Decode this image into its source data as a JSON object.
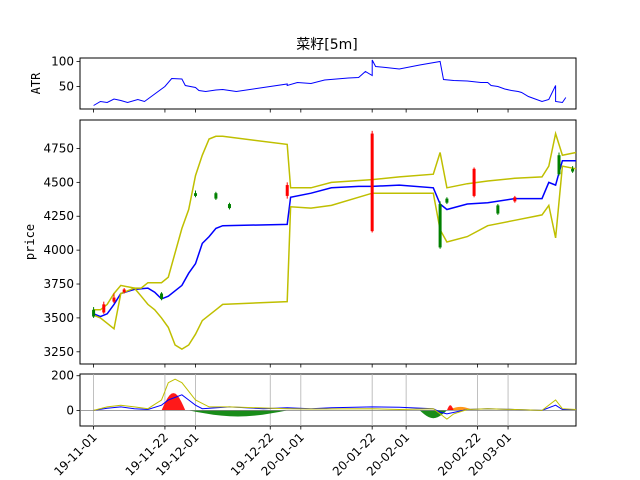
{
  "title": "菜籽[5m]",
  "chart_data": [
    {
      "panel": "atr",
      "type": "line",
      "ylabel": "ATR",
      "ylim": [
        5,
        107
      ],
      "yticks": [
        50,
        100
      ],
      "series": [
        {
          "color": "#0000ff",
          "points": [
            [
              0,
              12
            ],
            [
              2,
              20
            ],
            [
              4,
              18
            ],
            [
              6,
              25
            ],
            [
              8,
              22
            ],
            [
              10,
              18
            ],
            [
              13,
              24
            ],
            [
              15,
              20
            ],
            [
              18,
              35
            ],
            [
              21,
              50
            ],
            [
              23,
              66
            ],
            [
              26,
              65
            ],
            [
              27,
              52
            ],
            [
              30,
              48
            ],
            [
              31,
              42
            ],
            [
              33,
              40
            ],
            [
              36,
              43
            ],
            [
              38,
              44
            ],
            [
              40,
              42
            ],
            [
              42,
              40
            ],
            [
              57,
              55
            ],
            [
              57,
              52
            ],
            [
              60,
              58
            ],
            [
              64,
              56
            ],
            [
              68,
              63
            ],
            [
              75,
              67
            ],
            [
              78,
              68
            ],
            [
              80,
              80
            ],
            [
              82,
              72
            ],
            [
              82,
              103
            ],
            [
              83,
              90
            ],
            [
              86,
              88
            ],
            [
              90,
              85
            ],
            [
              96,
              93
            ],
            [
              102,
              100
            ],
            [
              103,
              64
            ],
            [
              106,
              62
            ],
            [
              110,
              61
            ],
            [
              114,
              58
            ],
            [
              116,
              58
            ],
            [
              117,
              52
            ],
            [
              119,
              50
            ],
            [
              121,
              45
            ],
            [
              123,
              42
            ],
            [
              125,
              40
            ],
            [
              126,
              38
            ],
            [
              128,
              30
            ],
            [
              130,
              25
            ],
            [
              132,
              20
            ],
            [
              134,
              24
            ],
            [
              136,
              52
            ],
            [
              136,
              20
            ],
            [
              138,
              18
            ],
            [
              139,
              28
            ]
          ]
        }
      ]
    },
    {
      "panel": "price",
      "type": "line",
      "ylabel": "price",
      "ylim": [
        3160,
        4960
      ],
      "yticks": [
        3250,
        3500,
        3750,
        4000,
        4250,
        4500,
        4750
      ],
      "series": [
        {
          "color": "#0000ff",
          "points": [
            [
              0,
              3530
            ],
            [
              2,
              3510
            ],
            [
              4,
              3530
            ],
            [
              6,
              3600
            ],
            [
              8,
              3680
            ],
            [
              12,
              3710
            ],
            [
              16,
              3720
            ],
            [
              18,
              3690
            ],
            [
              20,
              3640
            ],
            [
              22,
              3660
            ],
            [
              24,
              3700
            ],
            [
              26,
              3740
            ],
            [
              28,
              3830
            ],
            [
              30,
              3900
            ],
            [
              32,
              4050
            ],
            [
              34,
              4100
            ],
            [
              36,
              4160
            ],
            [
              38,
              4180
            ],
            [
              57,
              4190
            ],
            [
              58,
              4390
            ],
            [
              64,
              4420
            ],
            [
              70,
              4460
            ],
            [
              78,
              4470
            ],
            [
              82,
              4470
            ],
            [
              90,
              4480
            ],
            [
              100,
              4460
            ],
            [
              102,
              4340
            ],
            [
              104,
              4300
            ],
            [
              110,
              4340
            ],
            [
              116,
              4350
            ],
            [
              124,
              4380
            ],
            [
              132,
              4380
            ],
            [
              134,
              4500
            ],
            [
              136,
              4480
            ],
            [
              138,
              4660
            ],
            [
              142,
              4660
            ]
          ]
        },
        {
          "color": "#bfbf00",
          "points": [
            [
              0,
              3520
            ],
            [
              2,
              3500
            ],
            [
              4,
              3460
            ],
            [
              6,
              3420
            ],
            [
              8,
              3680
            ],
            [
              12,
              3720
            ],
            [
              14,
              3720
            ],
            [
              16,
              3760
            ],
            [
              20,
              3760
            ],
            [
              22,
              3800
            ],
            [
              26,
              4160
            ],
            [
              28,
              4300
            ],
            [
              30,
              4550
            ],
            [
              32,
              4700
            ],
            [
              34,
              4820
            ],
            [
              36,
              4840
            ],
            [
              38,
              4840
            ],
            [
              57,
              4780
            ],
            [
              58,
              4460
            ],
            [
              64,
              4460
            ],
            [
              70,
              4500
            ],
            [
              82,
              4520
            ],
            [
              90,
              4540
            ],
            [
              100,
              4560
            ],
            [
              102,
              4720
            ],
            [
              104,
              4460
            ],
            [
              110,
              4490
            ],
            [
              116,
              4510
            ],
            [
              124,
              4530
            ],
            [
              132,
              4540
            ],
            [
              134,
              4620
            ],
            [
              136,
              4860
            ],
            [
              138,
              4700
            ],
            [
              142,
              4720
            ]
          ]
        },
        {
          "color": "#bfbf00",
          "points": [
            [
              0,
              3560
            ],
            [
              2,
              3560
            ],
            [
              4,
              3600
            ],
            [
              6,
              3680
            ],
            [
              8,
              3740
            ],
            [
              12,
              3720
            ],
            [
              14,
              3660
            ],
            [
              16,
              3600
            ],
            [
              18,
              3560
            ],
            [
              20,
              3500
            ],
            [
              22,
              3430
            ],
            [
              24,
              3300
            ],
            [
              26,
              3270
            ],
            [
              28,
              3300
            ],
            [
              30,
              3380
            ],
            [
              32,
              3480
            ],
            [
              34,
              3520
            ],
            [
              36,
              3560
            ],
            [
              38,
              3600
            ],
            [
              57,
              3620
            ],
            [
              58,
              4320
            ],
            [
              64,
              4310
            ],
            [
              70,
              4330
            ],
            [
              82,
              4420
            ],
            [
              90,
              4420
            ],
            [
              100,
              4420
            ],
            [
              102,
              4150
            ],
            [
              104,
              4060
            ],
            [
              110,
              4100
            ],
            [
              116,
              4180
            ],
            [
              124,
              4220
            ],
            [
              132,
              4260
            ],
            [
              134,
              4330
            ],
            [
              136,
              4090
            ],
            [
              138,
              4620
            ],
            [
              142,
              4600
            ]
          ]
        }
      ],
      "candles": [
        {
          "x": 0,
          "open": 3560,
          "close": 3510,
          "high": 3580,
          "low": 3500
        },
        {
          "x": 3,
          "open": 3540,
          "close": 3600,
          "high": 3620,
          "low": 3530
        },
        {
          "x": 6,
          "open": 3620,
          "close": 3650,
          "high": 3680,
          "low": 3610
        },
        {
          "x": 9,
          "open": 3690,
          "close": 3710,
          "high": 3720,
          "low": 3680
        },
        {
          "x": 20,
          "open": 3680,
          "close": 3640,
          "high": 3690,
          "low": 3630
        },
        {
          "x": 30,
          "open": 4420,
          "close": 4400,
          "high": 4440,
          "low": 4390
        },
        {
          "x": 36,
          "open": 4420,
          "close": 4380,
          "high": 4430,
          "low": 4370
        },
        {
          "x": 40,
          "open": 4340,
          "close": 4310,
          "high": 4350,
          "low": 4300
        },
        {
          "x": 57,
          "open": 4400,
          "close": 4480,
          "high": 4500,
          "low": 4380
        },
        {
          "x": 82,
          "open": 4140,
          "close": 4860,
          "high": 4880,
          "low": 4130
        },
        {
          "x": 102,
          "open": 4340,
          "close": 4020,
          "high": 4360,
          "low": 4010
        },
        {
          "x": 104,
          "open": 4380,
          "close": 4350,
          "high": 4390,
          "low": 4340
        },
        {
          "x": 112,
          "open": 4400,
          "close": 4600,
          "high": 4610,
          "low": 4390
        },
        {
          "x": 119,
          "open": 4330,
          "close": 4270,
          "high": 4340,
          "low": 4260
        },
        {
          "x": 124,
          "open": 4360,
          "close": 4390,
          "high": 4400,
          "low": 4350
        },
        {
          "x": 137,
          "open": 4700,
          "close": 4560,
          "high": 4720,
          "low": 4550
        },
        {
          "x": 141,
          "open": 4600,
          "close": 4580,
          "high": 4620,
          "low": 4570
        }
      ]
    },
    {
      "panel": "indicator",
      "type": "area",
      "ylim": [
        -90,
        210
      ],
      "yticks": [
        0,
        200
      ],
      "xticks": [
        "2019-11-01",
        "2019-11-22",
        "2019-12-01",
        "2019-12-22",
        "2020-01-01",
        "2020-01-22",
        "2020-02-01",
        "2020-02-22",
        "2020-03-01"
      ],
      "xtick_positions": [
        0,
        21,
        30,
        52,
        61,
        82,
        92,
        113,
        122
      ],
      "xtick_display": [
        "19-11-01",
        "19-11-22",
        "19-12-01",
        "19-12-22",
        "20-01-01",
        "20-01-22",
        "20-02-01",
        "20-02-22",
        "20-03-01"
      ],
      "series": [
        {
          "color": "#0000ff",
          "points": [
            [
              0,
              0
            ],
            [
              4,
              12
            ],
            [
              8,
              20
            ],
            [
              12,
              10
            ],
            [
              16,
              5
            ],
            [
              20,
              30
            ],
            [
              22,
              60
            ],
            [
              26,
              90
            ],
            [
              28,
              60
            ],
            [
              30,
              30
            ],
            [
              32,
              10
            ],
            [
              40,
              20
            ],
            [
              50,
              10
            ],
            [
              57,
              15
            ],
            [
              64,
              10
            ],
            [
              70,
              15
            ],
            [
              82,
              20
            ],
            [
              90,
              18
            ],
            [
              100,
              10
            ],
            [
              102,
              -10
            ],
            [
              104,
              -20
            ],
            [
              110,
              5
            ],
            [
              116,
              10
            ],
            [
              124,
              5
            ],
            [
              132,
              0
            ],
            [
              136,
              30
            ],
            [
              138,
              5
            ],
            [
              142,
              5
            ]
          ]
        },
        {
          "color": "#bfbf00",
          "points": [
            [
              0,
              0
            ],
            [
              4,
              20
            ],
            [
              8,
              30
            ],
            [
              12,
              20
            ],
            [
              16,
              10
            ],
            [
              20,
              60
            ],
            [
              22,
              160
            ],
            [
              24,
              180
            ],
            [
              26,
              160
            ],
            [
              28,
              110
            ],
            [
              30,
              60
            ],
            [
              34,
              20
            ],
            [
              40,
              20
            ],
            [
              57,
              10
            ],
            [
              64,
              8
            ],
            [
              82,
              10
            ],
            [
              90,
              5
            ],
            [
              100,
              10
            ],
            [
              102,
              -20
            ],
            [
              104,
              -50
            ],
            [
              106,
              -20
            ],
            [
              110,
              5
            ],
            [
              116,
              10
            ],
            [
              124,
              5
            ],
            [
              132,
              0
            ],
            [
              136,
              60
            ],
            [
              138,
              10
            ],
            [
              142,
              5
            ]
          ]
        }
      ],
      "fills": [
        {
          "color": "#ff0000",
          "x0": 20,
          "x1": 27,
          "amplitude": 100
        },
        {
          "color": "#008000",
          "x0": 28,
          "x1": 57,
          "amplitude": -35
        },
        {
          "color": "#008000",
          "x0": 96,
          "x1": 104,
          "amplitude": -45
        },
        {
          "color": "#ff8c00",
          "x0": 104,
          "x1": 112,
          "amplitude": 20
        },
        {
          "color": "#ff0000",
          "x0": 104,
          "x1": 106,
          "amplitude": 30
        }
      ]
    }
  ]
}
